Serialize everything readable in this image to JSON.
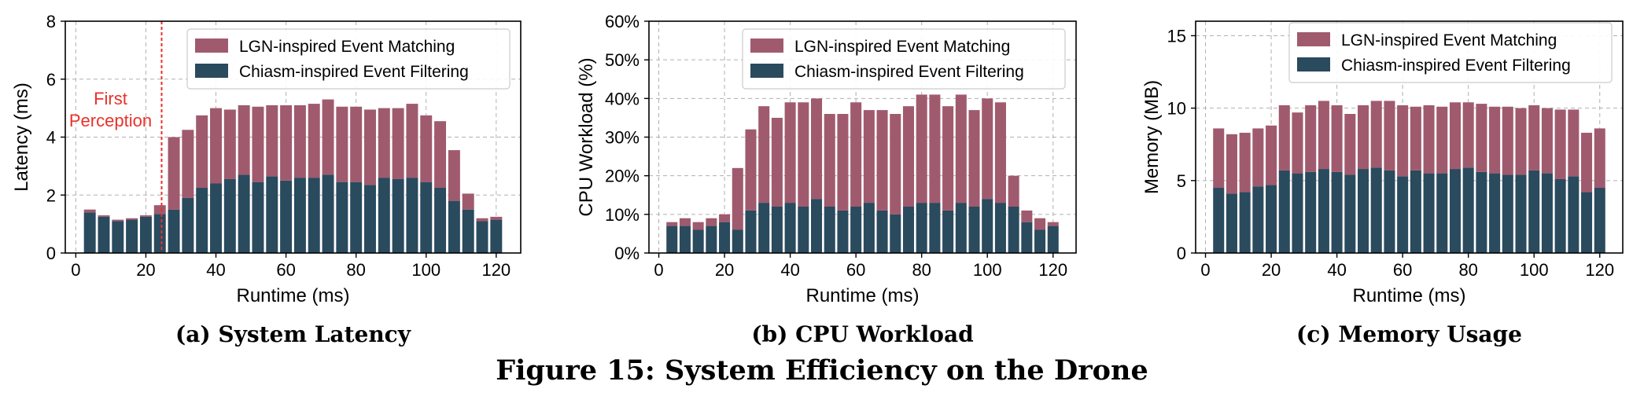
{
  "figure_caption": "Figure 15: System Efficiency on the Drone",
  "colors": {
    "matching": "#a05a6e",
    "filtering": "#2a4a5e",
    "annotation": "#e8322a",
    "grid": "#b0b0b0"
  },
  "chart_data": [
    {
      "type": "bar",
      "subcaption": "(a) System Latency",
      "xlabel": "Runtime (ms)",
      "ylabel": "Latency (ms)",
      "xlim": [
        -3,
        127
      ],
      "ylim": [
        0,
        8
      ],
      "xticks": [
        0,
        20,
        40,
        60,
        80,
        100,
        120
      ],
      "yticks": [
        0,
        2,
        4,
        6,
        8
      ],
      "ytick_labels": [
        "0",
        "2",
        "4",
        "6",
        "8"
      ],
      "grid": true,
      "legend_position": "top-right",
      "stacked": true,
      "x": [
        4,
        8,
        12,
        16,
        20,
        24,
        28,
        32,
        36,
        40,
        44,
        48,
        52,
        56,
        60,
        64,
        68,
        72,
        76,
        80,
        84,
        88,
        92,
        96,
        100,
        104,
        108,
        112,
        116,
        120
      ],
      "series": [
        {
          "name": "Chiasm-inspired Event Filtering",
          "color_key": "filtering",
          "values": [
            1.4,
            1.25,
            1.1,
            1.15,
            1.25,
            1.35,
            1.5,
            1.9,
            2.25,
            2.4,
            2.55,
            2.7,
            2.45,
            2.65,
            2.5,
            2.6,
            2.6,
            2.7,
            2.45,
            2.45,
            2.35,
            2.6,
            2.55,
            2.6,
            2.45,
            2.25,
            1.8,
            1.5,
            1.1,
            1.15
          ]
        },
        {
          "name": "LGN-inspired Event Matching",
          "color_key": "matching",
          "values": [
            0.1,
            0.05,
            0.05,
            0.05,
            0.05,
            0.3,
            2.5,
            2.35,
            2.5,
            2.6,
            2.4,
            2.4,
            2.6,
            2.45,
            2.6,
            2.5,
            2.55,
            2.6,
            2.6,
            2.6,
            2.6,
            2.4,
            2.45,
            2.55,
            2.3,
            2.3,
            1.75,
            0.55,
            0.1,
            0.1
          ]
        }
      ],
      "annotation": {
        "text_lines": [
          "First",
          "Perception"
        ],
        "x": 24.5
      }
    },
    {
      "type": "bar",
      "subcaption": "(b) CPU Workload",
      "xlabel": "Runtime (ms)",
      "ylabel": "CPU Workload (%)",
      "xlim": [
        -3,
        127
      ],
      "ylim": [
        0,
        60
      ],
      "xticks": [
        0,
        20,
        40,
        60,
        80,
        100,
        120
      ],
      "yticks": [
        0,
        10,
        20,
        30,
        40,
        50,
        60
      ],
      "ytick_labels": [
        "0%",
        "10%",
        "20%",
        "30%",
        "40%",
        "50%",
        "60%"
      ],
      "grid": true,
      "legend_position": "top-right",
      "stacked": true,
      "x": [
        4,
        8,
        12,
        16,
        20,
        24,
        28,
        32,
        36,
        40,
        44,
        48,
        52,
        56,
        60,
        64,
        68,
        72,
        76,
        80,
        84,
        88,
        92,
        96,
        100,
        104,
        108,
        112,
        116,
        120
      ],
      "series": [
        {
          "name": "Chiasm-inspired Event Filtering",
          "color_key": "filtering",
          "values": [
            7,
            7,
            6,
            7,
            8,
            6,
            11,
            13,
            12,
            13,
            12,
            14,
            12,
            11,
            12,
            13,
            11,
            10,
            12,
            13,
            13,
            11,
            13,
            12,
            14,
            13,
            12,
            8,
            6,
            7
          ]
        },
        {
          "name": "LGN-inspired Event Matching",
          "color_key": "matching",
          "values": [
            1,
            2,
            2,
            2,
            2,
            16,
            21,
            25,
            23,
            26,
            27,
            26,
            24,
            25,
            27,
            24,
            26,
            26,
            26,
            28,
            28,
            27,
            28,
            25,
            26,
            26,
            8,
            3,
            3,
            1
          ]
        }
      ]
    },
    {
      "type": "bar",
      "subcaption": "(c) Memory Usage",
      "xlabel": "Runtime (ms)",
      "ylabel": "Memory (MB)",
      "xlim": [
        -3,
        127
      ],
      "ylim": [
        0,
        16
      ],
      "xticks": [
        0,
        20,
        40,
        60,
        80,
        100,
        120
      ],
      "yticks": [
        0,
        5,
        10,
        15
      ],
      "ytick_labels": [
        "0",
        "5",
        "10",
        "15"
      ],
      "grid": true,
      "legend_position": "top-right",
      "stacked": true,
      "x": [
        4,
        8,
        12,
        16,
        20,
        24,
        28,
        32,
        36,
        40,
        44,
        48,
        52,
        56,
        60,
        64,
        68,
        72,
        76,
        80,
        84,
        88,
        92,
        96,
        100,
        104,
        108,
        112,
        116,
        120
      ],
      "series": [
        {
          "name": "Chiasm-inspired Event Filtering",
          "color_key": "filtering",
          "values": [
            4.5,
            4.1,
            4.2,
            4.6,
            4.7,
            5.7,
            5.5,
            5.6,
            5.8,
            5.6,
            5.4,
            5.8,
            5.9,
            5.7,
            5.3,
            5.7,
            5.5,
            5.5,
            5.8,
            5.9,
            5.6,
            5.5,
            5.4,
            5.4,
            5.7,
            5.5,
            5.1,
            5.3,
            4.2,
            4.5
          ]
        },
        {
          "name": "LGN-inspired Event Matching",
          "color_key": "matching",
          "values": [
            4.1,
            4.1,
            4.1,
            4.0,
            4.1,
            4.5,
            4.2,
            4.6,
            4.7,
            4.6,
            4.2,
            4.4,
            4.6,
            4.8,
            4.9,
            4.4,
            4.7,
            4.6,
            4.6,
            4.5,
            4.7,
            4.6,
            4.7,
            4.6,
            4.5,
            4.5,
            4.8,
            4.6,
            4.1,
            4.1
          ]
        }
      ]
    }
  ]
}
